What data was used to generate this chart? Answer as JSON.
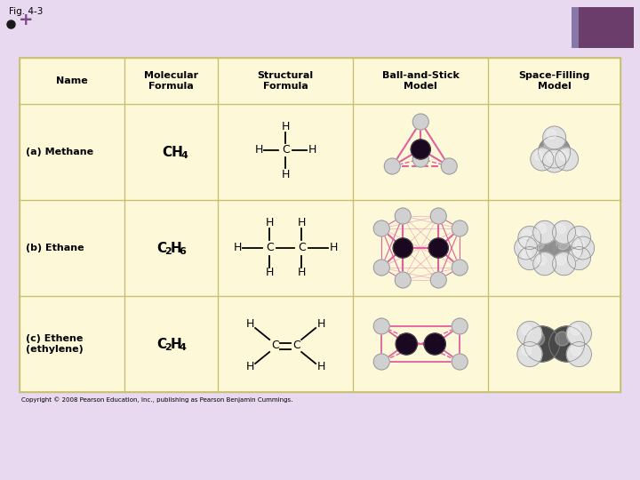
{
  "title": "Fig. 4-3",
  "bg_color": "#e8d8f0",
  "cell_bg": "#fdf9d8",
  "header_bg": "#fdf9d8",
  "border_color": "#c8c070",
  "purple_rect_color": "#6b3d6b",
  "purple_strip_color": "#8878a8",
  "bullet_color": "#1a1a1a",
  "plus_color": "#7a4a8a",
  "col_headers": [
    "Name",
    "Molecular\nFormula",
    "Structural\nFormula",
    "Ball-and-Stick\nModel",
    "Space-Filling\nModel"
  ],
  "row_labels": [
    "(a) Methane",
    "(b) Ethane",
    "(c) Ethene\n(ethylene)"
  ],
  "copyright": "Copyright © 2008 Pearson Education, Inc., publishing as Pearson Benjamin Cummings.",
  "pink": "#e060a0",
  "dark_c": "#1a0820",
  "white_h": "#d0d0d0",
  "gray_light": "#c8c8c8",
  "gray_dark": "#505050"
}
